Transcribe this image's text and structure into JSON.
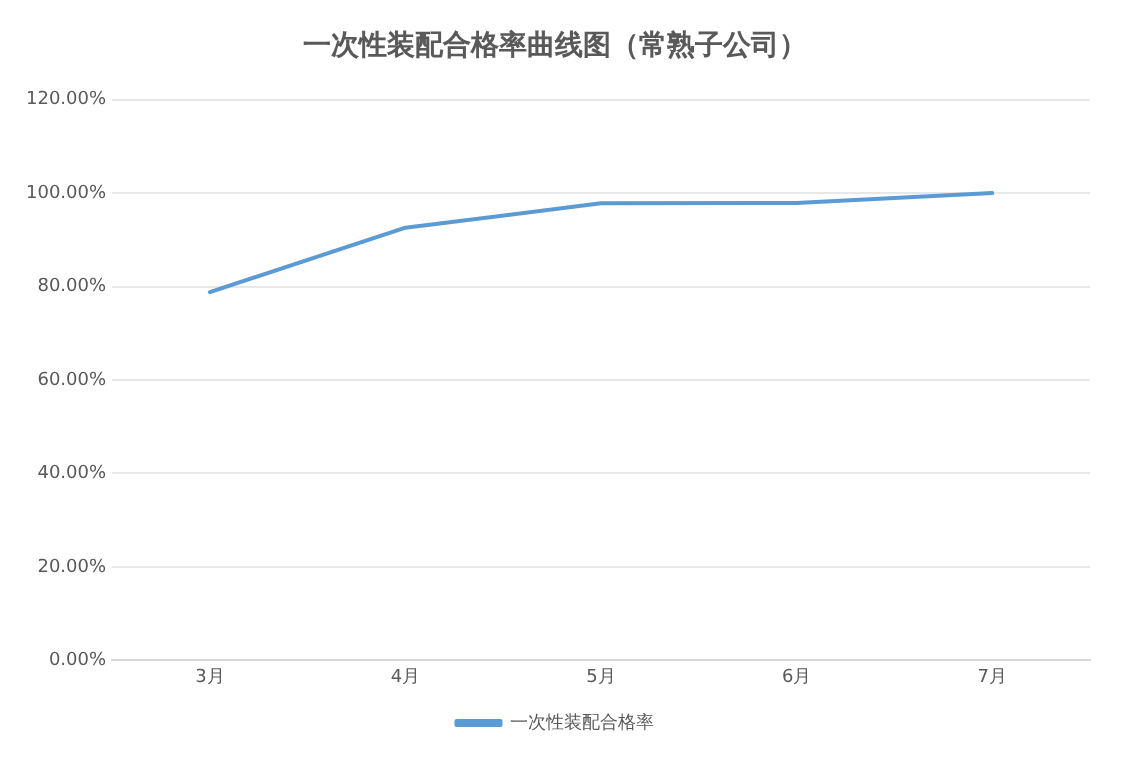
{
  "chart_data": {
    "type": "line",
    "title": "一次性装配合格率曲线图（常熟子公司）",
    "categories": [
      "3月",
      "4月",
      "5月",
      "6月",
      "7月"
    ],
    "series": [
      {
        "name": "一次性装配合格率",
        "color": "#5b9bd5",
        "values": [
          78.8,
          92.6,
          97.8,
          97.9,
          100
        ]
      }
    ],
    "ylim": [
      0,
      120
    ],
    "yticks": [
      {
        "value": 0,
        "label": "0.00%"
      },
      {
        "value": 20,
        "label": "20.00%"
      },
      {
        "value": 40,
        "label": "40.00%"
      },
      {
        "value": 60,
        "label": "60.00%"
      },
      {
        "value": 80,
        "label": "80.00%"
      },
      {
        "value": 100,
        "label": "100.00%"
      },
      {
        "value": 120,
        "label": "120.00%"
      }
    ],
    "grid": "y",
    "legend": "bottom",
    "marker": "none",
    "line_style": "solid"
  }
}
